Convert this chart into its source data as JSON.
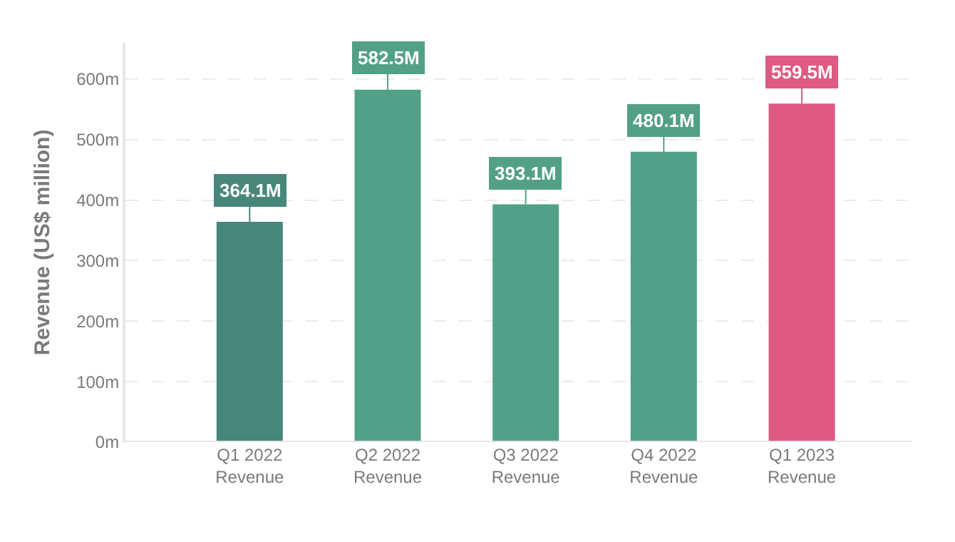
{
  "chart_data": {
    "type": "bar",
    "ylabel": "Revenue (US$ million)",
    "categories": [
      "Q1 2022 Revenue",
      "Q2 2022 Revenue",
      "Q3 2022 Revenue",
      "Q4 2022 Revenue",
      "Q1 2023 Revenue"
    ],
    "values": [
      364.1,
      582.5,
      393.1,
      480.1,
      559.5
    ],
    "value_labels": [
      "364.1M",
      "582.5M",
      "393.1M",
      "480.1M",
      "559.5M"
    ],
    "colors": [
      "#47877a",
      "#52a087",
      "#52a087",
      "#52a087",
      "#de5a82"
    ],
    "ylim": [
      0,
      660
    ],
    "yticks": [
      {
        "value": 0,
        "label": "0m"
      },
      {
        "value": 100,
        "label": "100m"
      },
      {
        "value": 200,
        "label": "200m"
      },
      {
        "value": 300,
        "label": "300m"
      },
      {
        "value": 400,
        "label": "400m"
      },
      {
        "value": 500,
        "label": "500m"
      },
      {
        "value": 600,
        "label": "600m"
      }
    ],
    "grid": "y"
  }
}
